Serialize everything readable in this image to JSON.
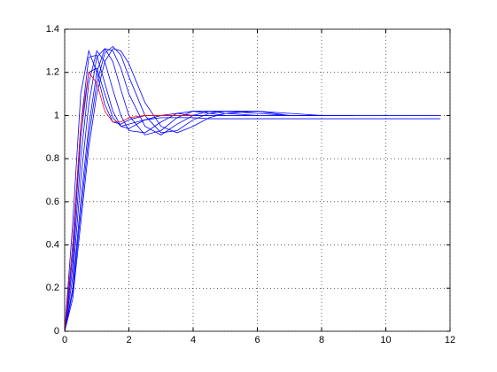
{
  "chart_data": {
    "type": "line",
    "x": [
      0,
      0.25,
      0.5,
      0.75,
      1,
      1.25,
      1.5,
      1.75,
      2,
      2.5,
      3,
      3.5,
      4,
      4.5,
      5,
      6,
      7,
      8,
      9,
      10,
      11,
      11.7
    ],
    "series": [
      {
        "color": "#0000ff",
        "values": [
          0,
          0.5,
          1.1,
          1.3,
          1.2,
          1.05,
          0.97,
          0.96,
          0.98,
          1.0,
          1.0,
          1.0,
          1.0,
          1.0,
          null,
          null,
          null,
          null,
          null,
          null,
          null,
          null
        ]
      },
      {
        "color": "#0000ff",
        "values": [
          0,
          0.4,
          0.95,
          1.27,
          1.28,
          1.15,
          1.02,
          0.95,
          0.94,
          0.98,
          1.0,
          1.01,
          1.0,
          1.0,
          1.0,
          null,
          null,
          null,
          null,
          null,
          null,
          null
        ]
      },
      {
        "color": "#0000ff",
        "values": [
          0,
          0.3,
          0.8,
          1.15,
          1.3,
          1.25,
          1.12,
          1.0,
          0.93,
          0.92,
          0.97,
          1.01,
          1.02,
          1.01,
          1.0,
          1.0,
          null,
          null,
          null,
          null,
          null,
          null
        ]
      },
      {
        "color": "#0000ff",
        "values": [
          0,
          0.25,
          0.7,
          1.05,
          1.27,
          1.31,
          1.25,
          1.12,
          1.0,
          0.91,
          0.93,
          0.99,
          1.02,
          1.02,
          1.01,
          1.0,
          1.0,
          null,
          null,
          null,
          null,
          null
        ]
      },
      {
        "color": "#0000ff",
        "values": [
          0,
          0.2,
          0.6,
          0.95,
          1.2,
          1.31,
          1.3,
          1.22,
          1.1,
          0.95,
          0.91,
          0.96,
          1.0,
          1.02,
          1.02,
          1.01,
          1.0,
          1.0,
          null,
          null,
          null,
          null
        ]
      },
      {
        "color": "#0000ff",
        "values": [
          0,
          0.18,
          0.55,
          0.9,
          1.15,
          1.29,
          1.32,
          1.28,
          1.18,
          1.0,
          0.92,
          0.93,
          0.98,
          1.01,
          1.02,
          1.02,
          1.0,
          1.0,
          1.0,
          null,
          null,
          null
        ]
      },
      {
        "color": "#0000ff",
        "values": [
          0,
          0.15,
          0.5,
          0.85,
          1.1,
          1.25,
          1.31,
          1.3,
          1.24,
          1.06,
          0.95,
          0.92,
          0.95,
          0.99,
          1.01,
          1.02,
          1.01,
          1.0,
          1.0,
          1.0,
          1.0,
          1.0
        ]
      },
      {
        "color": "#0000ff",
        "values": [
          0,
          0.35,
          0.9,
          1.2,
          1.22,
          1.1,
          0.99,
          0.95,
          0.96,
          0.98,
          0.99,
          0.99,
          0.99,
          0.985,
          0.985,
          0.985,
          0.985,
          0.985,
          0.985,
          0.985,
          0.985,
          0.985
        ]
      },
      {
        "color": "#ff0000",
        "values": [
          0,
          0.4,
          0.95,
          1.2,
          1.15,
          1.02,
          0.97,
          0.97,
          0.99,
          1.0,
          1.0,
          1.0,
          1.0,
          null,
          null,
          null,
          null,
          null,
          null,
          null,
          null,
          null
        ]
      }
    ],
    "xlim": [
      0,
      12
    ],
    "xticks": [
      0,
      2,
      4,
      6,
      8,
      10,
      12
    ],
    "ylim": [
      0,
      1.4
    ],
    "yticks": [
      0,
      0.2,
      0.4,
      0.6,
      0.8,
      1,
      1.2,
      1.4
    ],
    "grid": true
  }
}
